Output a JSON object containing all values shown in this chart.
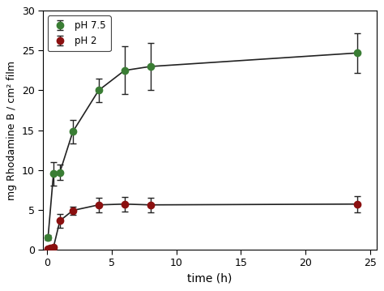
{
  "ph75_x": [
    0.083,
    0.5,
    1.0,
    2.0,
    4.0,
    6.0,
    8.0,
    24.0
  ],
  "ph75_y": [
    1.5,
    9.5,
    9.7,
    14.8,
    20.0,
    22.5,
    23.0,
    24.7
  ],
  "ph75_yerr": [
    0.3,
    1.5,
    1.0,
    1.5,
    1.5,
    3.0,
    3.0,
    2.5
  ],
  "ph2_x": [
    0.083,
    0.25,
    0.5,
    1.0,
    2.0,
    4.0,
    6.0,
    8.0,
    24.0
  ],
  "ph2_y": [
    0.05,
    0.15,
    0.25,
    3.6,
    4.9,
    5.6,
    5.7,
    5.6,
    5.7
  ],
  "ph2_yerr": [
    0.05,
    0.1,
    0.2,
    0.9,
    0.5,
    0.9,
    0.9,
    0.9,
    1.0
  ],
  "color_ph75": "#3a7d34",
  "color_ph2": "#8b1010",
  "line_color": "#222222",
  "xlabel": "time (h)",
  "ylabel": "mg Rhodamine B / cm² film",
  "xlim": [
    -0.3,
    25.5
  ],
  "ylim": [
    0,
    30
  ],
  "xticks": [
    0,
    5,
    10,
    15,
    20,
    25
  ],
  "yticks": [
    0,
    5,
    10,
    15,
    20,
    25,
    30
  ],
  "legend_labels": [
    "pH 7.5",
    "pH 2"
  ],
  "marker_size": 6,
  "linewidth": 1.2,
  "capsize": 3,
  "elinewidth": 1.0,
  "bg_color": "#ffffff"
}
